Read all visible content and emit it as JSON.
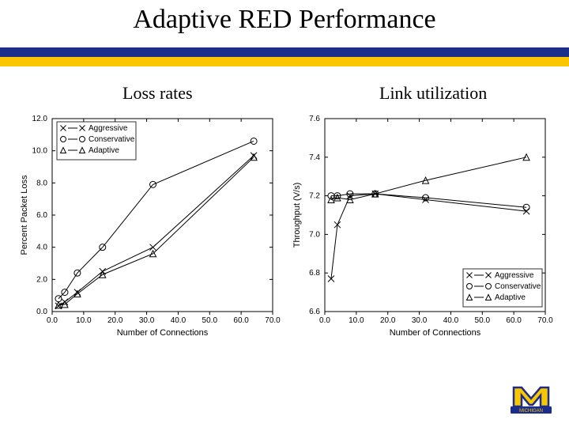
{
  "title": "Adaptive RED Performance",
  "rule_colors": {
    "top": "#1b2f8a",
    "bottom": "#f9c600"
  },
  "subtitles": {
    "left": "Loss rates",
    "right": "Link utilization"
  },
  "legend": {
    "items": [
      {
        "label": "Aggressive",
        "marker": "x",
        "color": "#000000"
      },
      {
        "label": "Conservative",
        "marker": "circle",
        "color": "#000000"
      },
      {
        "label": "Adaptive",
        "marker": "triangle",
        "color": "#000000"
      }
    ]
  },
  "chart_common": {
    "axis_color": "#000000",
    "grid_color": "#ffffff",
    "series_line_width": 1,
    "background_color": "#ffffff",
    "marker_size": 5,
    "label_fontsize": 11,
    "tick_fontsize": 10
  },
  "left_chart": {
    "type": "line",
    "xlabel": "Number of Connections",
    "ylabel": "Percent Packet Loss",
    "xlim": [
      0,
      70
    ],
    "xtick_step": 10,
    "ylim": [
      0,
      12
    ],
    "ytick_step": 2,
    "legend_position": "top-left",
    "series": [
      {
        "key": "aggressive",
        "marker": "x",
        "x": [
          2,
          4,
          8,
          16,
          32,
          64
        ],
        "y": [
          0.35,
          0.6,
          1.2,
          2.5,
          4.0,
          9.7
        ]
      },
      {
        "key": "conservative",
        "marker": "circle",
        "x": [
          2,
          4,
          8,
          16,
          32,
          64
        ],
        "y": [
          0.8,
          1.2,
          2.4,
          4.0,
          7.9,
          10.6
        ]
      },
      {
        "key": "adaptive",
        "marker": "triangle",
        "x": [
          2,
          4,
          8,
          16,
          32,
          64
        ],
        "y": [
          0.4,
          0.45,
          1.1,
          2.3,
          3.6,
          9.6
        ]
      }
    ]
  },
  "right_chart": {
    "type": "line",
    "xlabel": "Number of Connections",
    "ylabel": "Throughput (V/s)",
    "xlim": [
      0,
      70
    ],
    "xtick_step": 10,
    "ylim": [
      6.6,
      7.6
    ],
    "ytick_step": 0.2,
    "legend_position": "bottom-right",
    "series": [
      {
        "key": "aggressive",
        "marker": "x",
        "x": [
          2,
          4,
          8,
          16,
          32,
          64
        ],
        "y": [
          6.77,
          7.05,
          7.2,
          7.21,
          7.18,
          7.12
        ]
      },
      {
        "key": "conservative",
        "marker": "circle",
        "x": [
          2,
          4,
          8,
          16,
          32,
          64
        ],
        "y": [
          7.2,
          7.2,
          7.21,
          7.21,
          7.19,
          7.14
        ]
      },
      {
        "key": "adaptive",
        "marker": "triangle",
        "x": [
          2,
          4,
          8,
          16,
          32,
          64
        ],
        "y": [
          7.18,
          7.19,
          7.18,
          7.21,
          7.28,
          7.4
        ]
      }
    ]
  },
  "logo": {
    "M_fill": "#f9c600",
    "M_outline": "#1b2f8a",
    "band_fill": "#1b2f8a",
    "band_text": "MICHIGAN",
    "band_text_color": "#f9c600"
  }
}
